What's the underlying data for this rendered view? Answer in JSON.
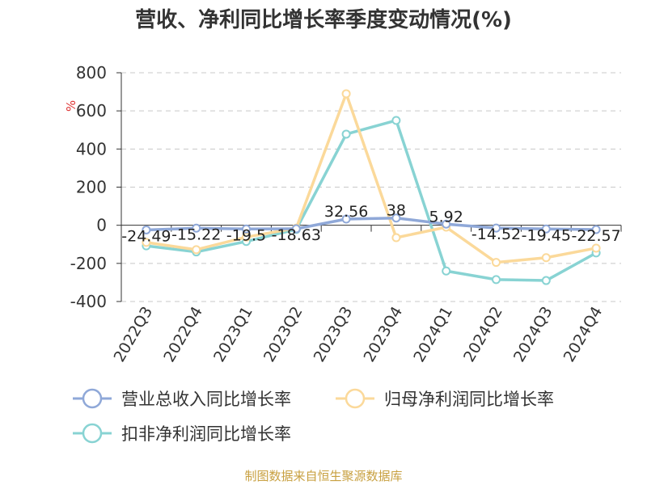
{
  "chart_data": {
    "type": "line",
    "title": "营收、净利同比增长率季度变动情况(%)",
    "ylabel": "%",
    "xlabel": "",
    "ylim": [
      -400,
      800
    ],
    "yticks": [
      800,
      600,
      400,
      200,
      0,
      -200,
      -400
    ],
    "grid": true,
    "legend_position": "bottom",
    "categories": [
      "2022Q3",
      "2022Q4",
      "2023Q1",
      "2023Q2",
      "2023Q3",
      "2023Q4",
      "2024Q1",
      "2024Q2",
      "2024Q3",
      "2024Q4"
    ],
    "series": [
      {
        "name": "营业总收入同比增长率",
        "color": "#8fa8d8",
        "values": [
          -24.49,
          -15.22,
          -19.5,
          -18.63,
          32.56,
          38,
          5.92,
          -14.52,
          -19.45,
          -22.57
        ],
        "labels": [
          "-24.49",
          "-15.22",
          "-19.5",
          "-18.63",
          "32.56",
          "38",
          "5.92",
          "-14.52",
          "-19.45",
          "-22.57"
        ]
      },
      {
        "name": "归母净利润同比增长率",
        "color": "#fbd99a",
        "values": [
          -90,
          -128,
          -62,
          -15,
          690,
          -65,
          -10,
          -195,
          -170,
          -120
        ]
      },
      {
        "name": "扣非净利润同比增长率",
        "color": "#88d3d3",
        "values": [
          -108,
          -140,
          -85,
          -22,
          478,
          550,
          -240,
          -285,
          -290,
          -145
        ]
      }
    ]
  },
  "source": {
    "text": "制图数据来自恒生聚源数据库",
    "color": "#c8a040"
  },
  "unit_color": "#dd3333"
}
